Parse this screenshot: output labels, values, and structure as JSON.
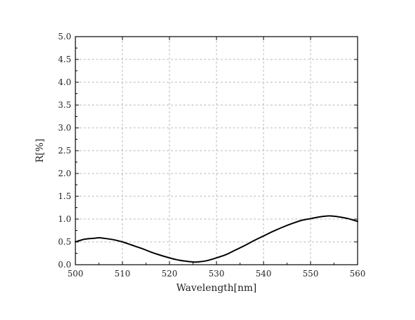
{
  "chart_data": {
    "type": "line",
    "title": "",
    "xlabel": "Wavelength[nm]",
    "ylabel": "R[%]",
    "xlim": [
      500,
      560
    ],
    "ylim": [
      0.0,
      5.0
    ],
    "xticks": [
      500,
      510,
      520,
      530,
      540,
      550,
      560
    ],
    "yticks": [
      0.0,
      0.5,
      1.0,
      1.5,
      2.0,
      2.5,
      3.0,
      3.5,
      4.0,
      4.5,
      5.0
    ],
    "xtick_labels": [
      "500",
      "510",
      "520",
      "530",
      "540",
      "550",
      "560"
    ],
    "ytick_labels": [
      "0.0",
      "0.5",
      "1.0",
      "1.5",
      "2.0",
      "2.5",
      "3.0",
      "3.5",
      "4.0",
      "4.5",
      "5.0"
    ],
    "grid": true,
    "series": [
      {
        "color": "#000000",
        "x": [
          500,
          502,
          504,
          505,
          506,
          508,
          510,
          512,
          514,
          516,
          518,
          520,
          522,
          524,
          525,
          526,
          528,
          530,
          532,
          534,
          536,
          538,
          540,
          542,
          544,
          546,
          548,
          550,
          552,
          554,
          556,
          558,
          560
        ],
        "y": [
          0.5,
          0.56,
          0.58,
          0.59,
          0.58,
          0.55,
          0.5,
          0.43,
          0.36,
          0.28,
          0.21,
          0.15,
          0.1,
          0.07,
          0.06,
          0.06,
          0.09,
          0.15,
          0.22,
          0.32,
          0.42,
          0.53,
          0.63,
          0.73,
          0.82,
          0.9,
          0.97,
          1.01,
          1.05,
          1.07,
          1.05,
          1.01,
          0.95
        ]
      }
    ]
  }
}
